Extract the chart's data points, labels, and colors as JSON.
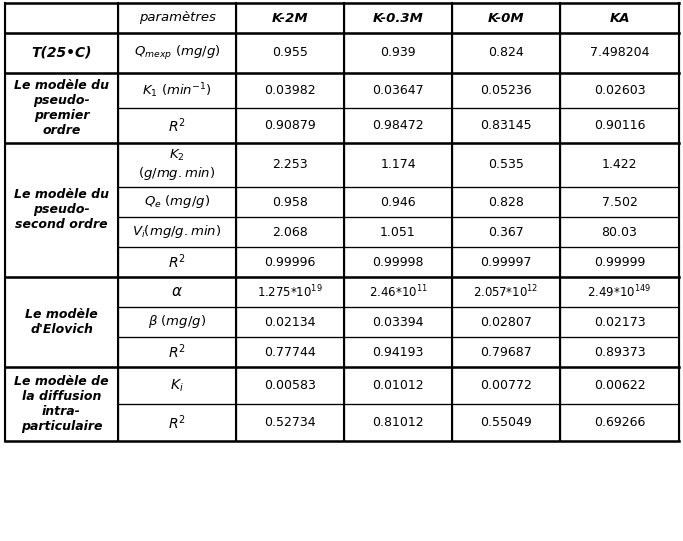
{
  "col_headers": [
    "paramètres",
    "K-2M",
    "K-0.3M",
    "K-0M",
    "KA"
  ],
  "bg_color": "#ffffff",
  "font_size": 9,
  "header_font_size": 9,
  "groups": [
    {
      "label": "T(25•C)",
      "label_bold_italic": true,
      "rows": [
        {
          "param_latex": "$\\mathit{Q_{mexp}}$ $\\mathit{(mg/g)}$",
          "values": [
            "0.955",
            "0.939",
            "0.824",
            "7.498204"
          ]
        }
      ]
    },
    {
      "label": "Le modèle du\npseudo-\npremier\nordre",
      "label_bold_italic": true,
      "rows": [
        {
          "param_latex": "$\\mathbf{\\mathit{K_1}}$ $\\mathbf{\\mathit{(min^{-1})}}$",
          "values": [
            "0.03982",
            "0.03647",
            "0.05236",
            "0.02603"
          ]
        },
        {
          "param_latex": "$\\mathbf{\\mathit{R^2}}$",
          "values": [
            "0.90879",
            "0.98472",
            "0.83145",
            "0.90116"
          ]
        }
      ]
    },
    {
      "label": "Le modèle du\npseudo-\nsecond ordre",
      "label_bold_italic": true,
      "rows": [
        {
          "param_latex": "$\\mathbf{\\mathit{K_2}}$\n$\\mathbf{\\mathit{(g/mg.min)}}$",
          "values": [
            "2.253",
            "1.174",
            "0.535",
            "1.422"
          ],
          "tall": true
        },
        {
          "param_latex": "$\\mathbf{\\mathit{Q_e}}$ $\\mathbf{\\mathit{(mg/g)}}$",
          "values": [
            "0.958",
            "0.946",
            "0.828",
            "7.502"
          ]
        },
        {
          "param_latex": "$\\mathbf{\\mathit{V_i(mg/g.min)}}$",
          "values": [
            "2.068",
            "1.051",
            "0.367",
            "80.03"
          ]
        },
        {
          "param_latex": "$\\mathbf{\\mathit{R^2}}$",
          "values": [
            "0.99996",
            "0.99998",
            "0.99997",
            "0.99999"
          ]
        }
      ]
    },
    {
      "label": "Le modèle\nd’Elovich",
      "label_bold_italic": true,
      "rows": [
        {
          "param_latex": "$\\mathbf{\\mathit{\\alpha}}$",
          "values_latex": [
            "1.275*10$^{19}$",
            "2.46*10$^{11}$",
            "2.057*10$^{12}$",
            "2.49*10$^{149}$"
          ]
        },
        {
          "param_latex": "$\\mathbf{\\mathit{\\beta}}$ $\\mathbf{\\mathit{(mg/g)}}$",
          "values": [
            "0.02134",
            "0.03394",
            "0.02807",
            "0.02173"
          ]
        },
        {
          "param_latex": "$\\mathbf{\\mathit{R^2}}$",
          "values": [
            "0.77744",
            "0.94193",
            "0.79687",
            "0.89373"
          ]
        }
      ]
    },
    {
      "label": "Le modèle de\nla diffusion\nintra-\nparticulaire",
      "label_bold_italic": true,
      "rows": [
        {
          "param_latex": "$\\mathbf{\\mathit{K_i}}$",
          "values": [
            "0.00583",
            "0.01012",
            "0.00772",
            "0.00622"
          ]
        },
        {
          "param_latex": "$\\mathbf{\\mathit{R^2}}$",
          "values": [
            "0.52734",
            "0.81012",
            "0.55049",
            "0.69266"
          ]
        }
      ]
    }
  ]
}
